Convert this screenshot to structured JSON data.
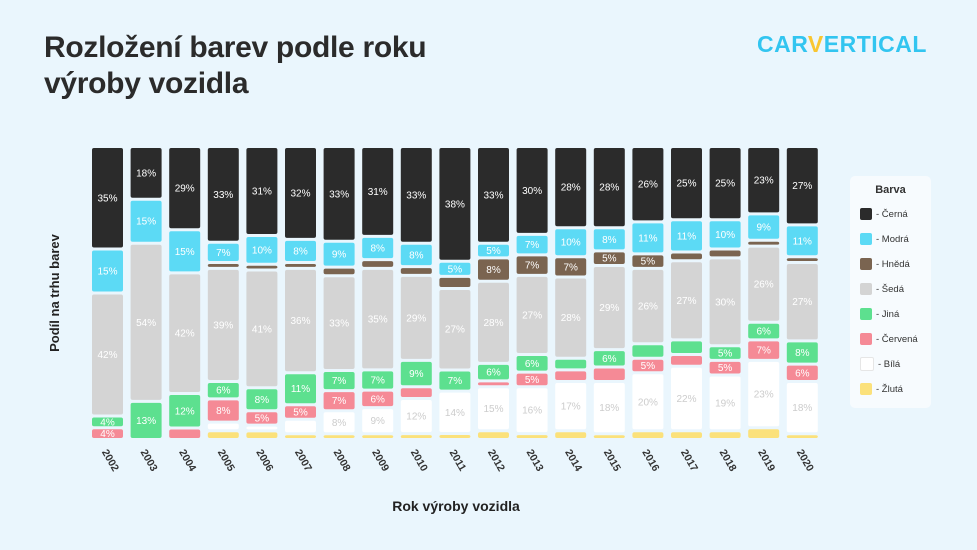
{
  "title": "Rozložení barev podle roku výroby vozidla",
  "logo": {
    "prefix": "CAR",
    "v": "V",
    "suffix": "ERTICAL"
  },
  "chart_data": {
    "type": "bar",
    "stacked": true,
    "normalized": true,
    "xlabel": "Rok výroby vozidla",
    "ylabel": "Podíl na trhu barev",
    "categories": [
      "2002",
      "2003",
      "2004",
      "2005",
      "2006",
      "2007",
      "2008",
      "2009",
      "2010",
      "2011",
      "2012",
      "2013",
      "2014",
      "2015",
      "2016",
      "2017",
      "2018",
      "2019",
      "2020"
    ],
    "legend_title": "Barva",
    "legend_position": "right",
    "series": [
      {
        "name": "Černá",
        "color": "#2b2b2b",
        "label_color": "#ffffff",
        "values": [
          35,
          18,
          29,
          33,
          31,
          32,
          33,
          31,
          33,
          38,
          33,
          30,
          28,
          28,
          26,
          25,
          25,
          23,
          27
        ]
      },
      {
        "name": "Modrá",
        "color": "#5cdaf5",
        "label_color": "#ffffff",
        "values": [
          15,
          15,
          15,
          7,
          10,
          8,
          9,
          8,
          8,
          5,
          5,
          7,
          10,
          8,
          11,
          11,
          10,
          9,
          11
        ]
      },
      {
        "name": "Hnědá",
        "color": "#7a6450",
        "label_color": "#ffffff",
        "values": [
          0,
          0,
          0,
          2,
          2,
          2,
          3,
          3,
          3,
          4,
          8,
          7,
          7,
          5,
          5,
          3,
          3,
          2,
          2
        ]
      },
      {
        "name": "Šedá",
        "color": "#d4d4d4",
        "label_color": "#ffffff",
        "values": [
          42,
          54,
          42,
          39,
          41,
          36,
          33,
          35,
          29,
          27,
          28,
          27,
          28,
          29,
          26,
          27,
          30,
          26,
          27
        ]
      },
      {
        "name": "Jiná",
        "color": "#5de08f",
        "label_color": "#ffffff",
        "values": [
          4,
          13,
          12,
          6,
          8,
          11,
          7,
          7,
          9,
          7,
          6,
          6,
          4,
          6,
          5,
          5,
          5,
          6,
          8
        ]
      },
      {
        "name": "Červená",
        "color": "#f58a96",
        "label_color": "#ffffff",
        "values": [
          4,
          0,
          4,
          8,
          5,
          5,
          7,
          6,
          4,
          0,
          2,
          5,
          4,
          5,
          5,
          4,
          5,
          7,
          6
        ]
      },
      {
        "name": "Bílá",
        "color": "#ffffff",
        "label_color": "#cccccc",
        "values": [
          0,
          0,
          0,
          3,
          2,
          5,
          8,
          9,
          12,
          14,
          15,
          16,
          17,
          18,
          20,
          22,
          19,
          23,
          18
        ]
      },
      {
        "name": "Žlutá",
        "color": "#fbe17b",
        "label_color": "#333333",
        "values": [
          0,
          0,
          0,
          3,
          3,
          2,
          2,
          2,
          2,
          2,
          3,
          2,
          3,
          2,
          3,
          3,
          3,
          4,
          2
        ]
      }
    ],
    "data_labels": {
      "Černá": [
        "35%",
        "18%",
        "29%",
        "33%",
        "31%",
        "32%",
        "33%",
        "31%",
        "33%",
        "38%",
        "33%",
        "30%",
        "28%",
        "28%",
        "26%",
        "25%",
        "25%",
        "23%",
        "27%"
      ],
      "Modrá": [
        "15%",
        "15%",
        "15%",
        "7%",
        "10%",
        "8%",
        "9%",
        "8%",
        "8%",
        "5%",
        "5%",
        "7%",
        "10%",
        "8%",
        "11%",
        "11%",
        "10%",
        "9%",
        "11%"
      ],
      "Hnědá": [
        "",
        "",
        "",
        "",
        "",
        "",
        "",
        "",
        "",
        "",
        "8%",
        "7%",
        "7%",
        "5%",
        "5%",
        "",
        "",
        "",
        ""
      ],
      "Šedá": [
        "42%",
        "54%",
        "42%",
        "39%",
        "41%",
        "36%",
        "33%",
        "35%",
        "29%",
        "27%",
        "28%",
        "27%",
        "28%",
        "29%",
        "26%",
        "27%",
        "30%",
        "26%",
        "27%"
      ],
      "Jiná": [
        "4%",
        "13%",
        "12%",
        "6%",
        "8%",
        "11%",
        "7%",
        "7%",
        "9%",
        "7%",
        "6%",
        "6%",
        "",
        "6%",
        "",
        "",
        "5%",
        "6%",
        "8%"
      ],
      "Červená": [
        "4%",
        "",
        "",
        "8%",
        "5%",
        "5%",
        "7%",
        "6%",
        "",
        "",
        "",
        "5%",
        "",
        "",
        "5%",
        "",
        "5%",
        "7%",
        "6%"
      ],
      "Bílá": [
        "",
        "",
        "",
        "",
        "",
        "",
        "8%",
        "9%",
        "12%",
        "14%",
        "15%",
        "16%",
        "17%",
        "18%",
        "20%",
        "22%",
        "19%",
        "23%",
        "18%"
      ],
      "Žlutá": [
        "",
        "",
        "",
        "",
        "",
        "",
        "",
        "",
        "",
        "",
        "",
        "",
        "",
        "",
        "",
        "",
        "",
        "",
        ""
      ]
    }
  }
}
